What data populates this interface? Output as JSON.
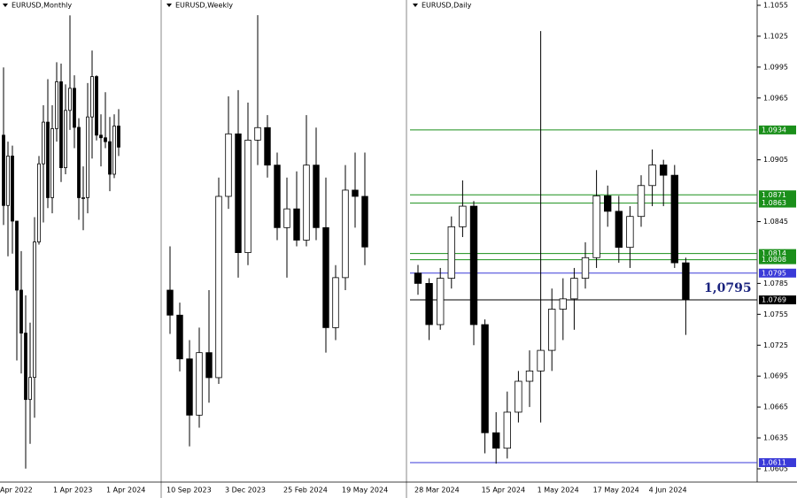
{
  "chart_data": [
    {
      "type": "candlestick",
      "title": "EURUSD,Monthly",
      "categories": [
        "Apr 2022",
        null,
        null,
        null,
        null,
        null,
        null,
        null,
        null,
        null,
        null,
        null,
        "1 Apr 2023",
        null,
        null,
        null,
        null,
        null,
        null,
        null,
        null,
        null,
        null,
        null,
        "1 Apr 2024",
        null,
        null
      ],
      "open": [
        1.0815,
        1.0545,
        1.0735,
        1.0485,
        1.022,
        1.0055,
        0.98,
        0.9885,
        1.0405,
        1.0705,
        1.0865,
        1.0575,
        1.084,
        1.102,
        1.069,
        1.091,
        1.0995,
        1.0845,
        1.0575,
        1.0575,
        1.0885,
        1.104,
        1.0815,
        1.0805,
        1.079,
        1.0665,
        1.085
      ],
      "high": [
        1.1075,
        1.079,
        1.0775,
        1.0485,
        1.037,
        1.02,
        1.0095,
        1.05,
        1.0735,
        1.093,
        1.103,
        1.093,
        1.1095,
        1.109,
        1.101,
        1.1275,
        1.1045,
        1.088,
        1.0695,
        1.1015,
        1.114,
        1.1045,
        1.0895,
        1.098,
        1.0885,
        1.0895,
        1.0915
      ],
      "low": [
        1.047,
        1.035,
        1.036,
        0.995,
        0.99,
        0.9535,
        0.963,
        0.973,
        1.0395,
        1.048,
        1.0535,
        1.0515,
        1.079,
        1.0635,
        1.0665,
        1.0835,
        1.0765,
        1.049,
        1.045,
        1.0515,
        1.0725,
        1.0795,
        1.0695,
        1.0765,
        1.06,
        1.065,
        1.0735
      ],
      "close": [
        1.0545,
        1.0735,
        1.0485,
        1.022,
        1.0055,
        0.98,
        0.9885,
        1.0405,
        1.0705,
        1.0865,
        1.0575,
        1.084,
        1.102,
        1.069,
        1.091,
        1.0995,
        1.0845,
        1.0575,
        1.0575,
        1.0885,
        1.104,
        1.0815,
        1.0805,
        1.079,
        1.0665,
        1.085,
        1.0769
      ],
      "ylim": [
        0.95,
        1.13
      ]
    },
    {
      "type": "candlestick",
      "title": "EURUSD,Weekly",
      "categories": [
        "10 Sep 2023",
        null,
        null,
        null,
        null,
        null,
        "3 Dec 2023",
        null,
        null,
        null,
        null,
        null,
        "25 Feb 2024",
        null,
        null,
        null,
        null,
        null,
        "19 May 2024",
        null,
        null
      ],
      "open": [
        1.07,
        1.066,
        1.059,
        1.05,
        1.06,
        1.056,
        1.085,
        1.095,
        1.076,
        1.094,
        1.096,
        1.09,
        1.08,
        1.083,
        1.078,
        1.09,
        1.08,
        1.064,
        1.072,
        1.086,
        1.085
      ],
      "high": [
        1.077,
        1.068,
        1.062,
        1.064,
        1.07,
        1.088,
        1.101,
        1.102,
        1.1,
        1.114,
        1.098,
        1.092,
        1.088,
        1.089,
        1.098,
        1.096,
        1.088,
        1.074,
        1.09,
        1.092,
        1.092
      ],
      "low": [
        1.063,
        1.057,
        1.045,
        1.048,
        1.052,
        1.055,
        1.083,
        1.072,
        1.074,
        1.09,
        1.088,
        1.078,
        1.072,
        1.077,
        1.077,
        1.078,
        1.06,
        1.062,
        1.07,
        1.08,
        1.074
      ],
      "close": [
        1.066,
        1.059,
        1.05,
        1.06,
        1.056,
        1.085,
        1.095,
        1.076,
        1.094,
        1.096,
        1.09,
        1.08,
        1.083,
        1.078,
        1.09,
        1.08,
        1.064,
        1.072,
        1.086,
        1.085,
        1.0769
      ],
      "ylim": [
        1.04,
        1.115
      ]
    },
    {
      "type": "candlestick",
      "title": "EURUSD,Daily",
      "categories": [
        "28 Mar 2024",
        null,
        null,
        null,
        null,
        null,
        "15 Apr 2024",
        null,
        null,
        null,
        null,
        "1 May 2024",
        null,
        null,
        null,
        null,
        "17 May 2024",
        null,
        null,
        null,
        null,
        "4 Jun 2024",
        null,
        null,
        null
      ],
      "open": [
        1.0795,
        1.0785,
        1.0745,
        1.079,
        1.084,
        1.086,
        1.0745,
        1.064,
        1.0625,
        1.066,
        1.069,
        1.07,
        1.072,
        1.076,
        1.077,
        1.079,
        1.081,
        1.087,
        1.0855,
        1.082,
        1.085,
        1.088,
        1.09,
        1.089,
        1.0805
      ],
      "high": [
        1.0803,
        1.079,
        1.08,
        1.085,
        1.0885,
        1.0865,
        1.075,
        1.066,
        1.068,
        1.07,
        1.072,
        1.103,
        1.078,
        1.079,
        1.08,
        1.0825,
        1.0895,
        1.088,
        1.087,
        1.086,
        1.089,
        1.0915,
        1.0905,
        1.09,
        1.081
      ],
      "low": [
        1.0774,
        1.073,
        1.074,
        1.078,
        1.083,
        1.0725,
        1.062,
        1.061,
        1.0615,
        1.065,
        1.0665,
        1.065,
        1.07,
        1.073,
        1.074,
        1.078,
        1.08,
        1.084,
        1.0805,
        1.08,
        1.084,
        1.086,
        1.086,
        1.08,
        1.0735
      ],
      "close": [
        1.0785,
        1.0745,
        1.079,
        1.084,
        1.086,
        1.0745,
        1.064,
        1.0625,
        1.066,
        1.069,
        1.07,
        1.072,
        1.076,
        1.077,
        1.079,
        1.081,
        1.087,
        1.0855,
        1.082,
        1.085,
        1.088,
        1.09,
        1.089,
        1.0805,
        1.0769
      ],
      "ylim": [
        1.0605,
        1.1055
      ],
      "yticks": [
        1.1055,
        1.1025,
        1.0995,
        1.0965,
        1.0905,
        1.0845,
        1.0785,
        1.0755,
        1.0725,
        1.0695,
        1.0665,
        1.0635,
        1.0605
      ],
      "levels": [
        {
          "value": 1.0934,
          "color": "#1a8f1a"
        },
        {
          "value": 1.0871,
          "color": "#1a8f1a"
        },
        {
          "value": 1.0863,
          "color": "#1a8f1a"
        },
        {
          "value": 1.0814,
          "color": "#1a8f1a"
        },
        {
          "value": 1.0808,
          "color": "#1a8f1a"
        },
        {
          "value": 1.0795,
          "color": "#3a3ad8"
        },
        {
          "value": 1.0769,
          "color": "#000000"
        },
        {
          "value": 1.0611,
          "color": "#3a3ad8"
        }
      ],
      "annotation": "1,0795"
    }
  ]
}
